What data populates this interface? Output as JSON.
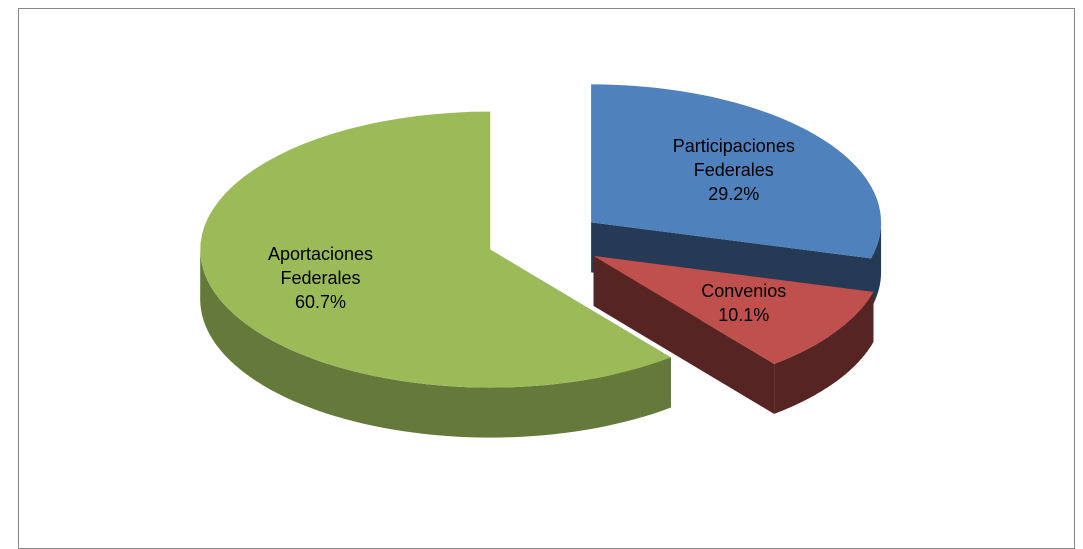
{
  "chart_data": {
    "type": "pie",
    "categories": [
      "Participaciones Federales",
      "Convenios",
      "Aportaciones Federales"
    ],
    "values": [
      29.2,
      10.1,
      60.7
    ],
    "value_labels": [
      "29.2%",
      "10.1%",
      "60.7%"
    ],
    "colors": [
      "#4f81bd",
      "#c0504d",
      "#9bbb59"
    ]
  }
}
